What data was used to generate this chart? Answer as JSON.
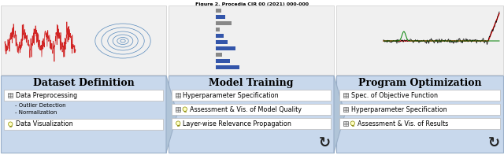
{
  "title": "Figure 2. Procedia CIR 00 (2021) 000-000",
  "bg_color": "#ffffff",
  "panel_bg": "#c8d8ec",
  "panel_border": "#9aafc8",
  "item_bg": "#ffffff",
  "item_border": "#bbbbbb",
  "section_titles": [
    "Dataset Definition",
    "Model Training",
    "Program Optimization"
  ],
  "dd_items": [
    {
      "text": "Data Preprocessing",
      "has_db": true,
      "has_bulb": false,
      "subitems": [
        "- Outlier Detection",
        "- Normalization"
      ]
    },
    {
      "text": "Data Visualization",
      "has_db": false,
      "has_bulb": true,
      "subitems": []
    }
  ],
  "mt_items": [
    {
      "text": "Hyperparameter Specification",
      "has_db": true,
      "has_bulb": false
    },
    {
      "text": "Assessment & Vis. of Model Quality",
      "has_db": true,
      "has_bulb": true
    },
    {
      "text": "Layer-wise Relevance Propagation",
      "has_db": false,
      "has_bulb": true
    }
  ],
  "po_items": [
    {
      "text": "Spec. of Objective Function",
      "has_db": true,
      "has_bulb": false
    },
    {
      "text": "Hyperparameter Specification",
      "has_db": true,
      "has_bulb": false
    },
    {
      "text": "Assessment & Vis. of Results",
      "has_db": true,
      "has_bulb": true
    }
  ],
  "refresh_color": "#222222",
  "chevron_color": "#b0c4d8",
  "chevron_border": "#9aafc8",
  "top_screenshot_bg": "#f0f0f0",
  "top_screenshot_border": "#cccccc"
}
